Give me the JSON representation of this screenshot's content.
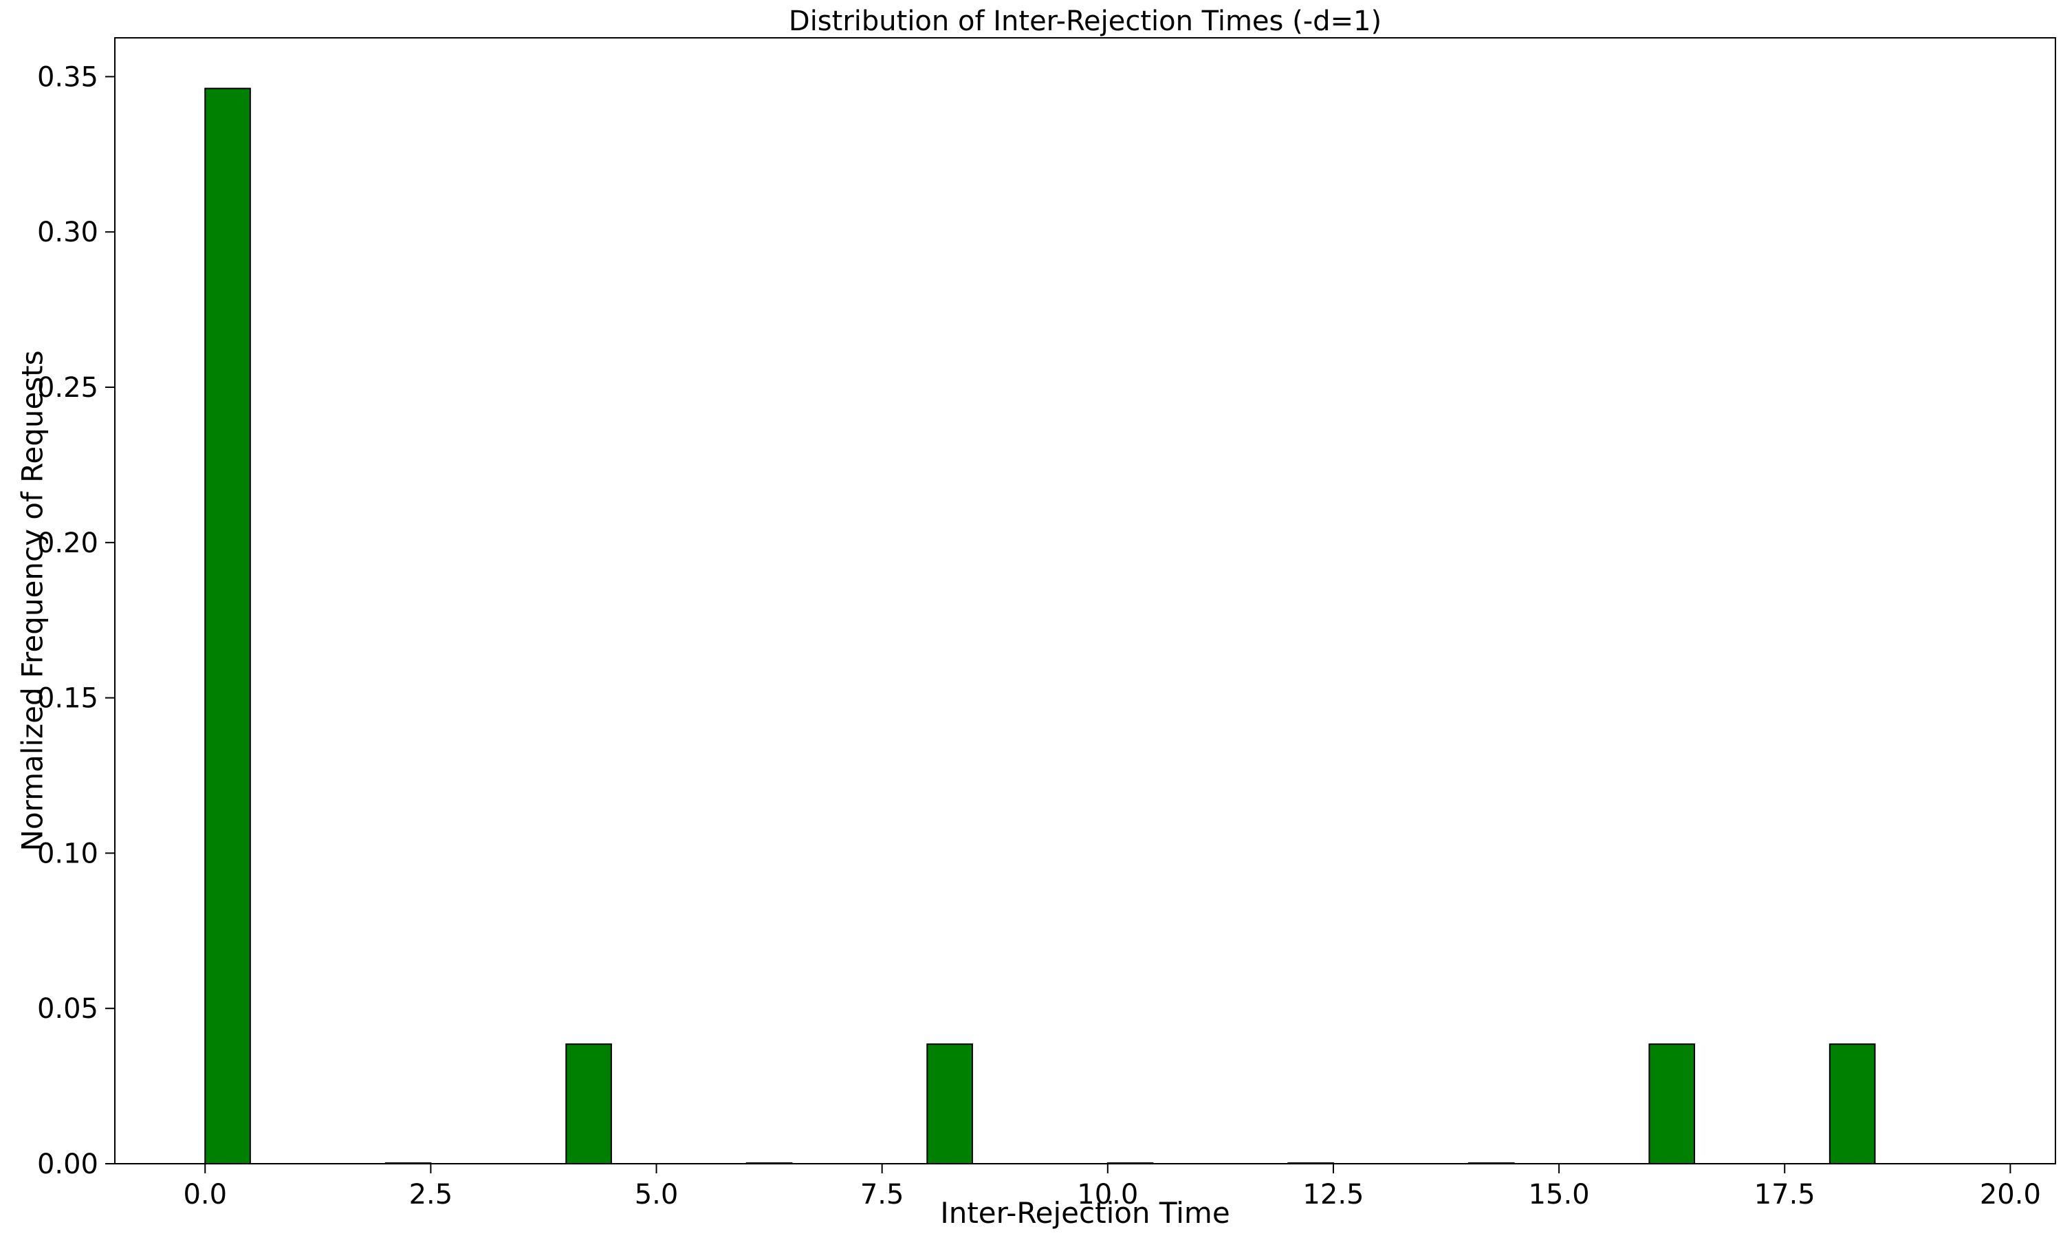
{
  "chart_data": {
    "type": "bar",
    "title": "Distribution of Inter-Rejection Times (-d=1)",
    "xlabel": "Inter-Rejection Time",
    "ylabel": "Normalized Frequency of Requests",
    "xlim": [
      -1,
      20.5
    ],
    "ylim": [
      0,
      0.3625
    ],
    "xticks": [
      0.0,
      2.5,
      5.0,
      7.5,
      10.0,
      12.5,
      15.0,
      17.5,
      20.0
    ],
    "xtick_labels": [
      "0.0",
      "2.5",
      "5.0",
      "7.5",
      "10.0",
      "12.5",
      "15.0",
      "17.5",
      "20.0"
    ],
    "yticks": [
      0.0,
      0.05,
      0.1,
      0.15,
      0.2,
      0.25,
      0.3,
      0.35
    ],
    "ytick_labels": [
      "0.00",
      "0.05",
      "0.10",
      "0.15",
      "0.20",
      "0.25",
      "0.30",
      "0.35"
    ],
    "bar_width": 0.5,
    "bar_color": "#008000",
    "edge_color": "#000000",
    "x": [
      0,
      2,
      4,
      6,
      8,
      10,
      12,
      14,
      16,
      18
    ],
    "values": [
      0.3462,
      0,
      0.0385,
      0,
      0.0385,
      0,
      0,
      0,
      0.0385,
      0.0385
    ],
    "grid": false,
    "legend": false
  }
}
